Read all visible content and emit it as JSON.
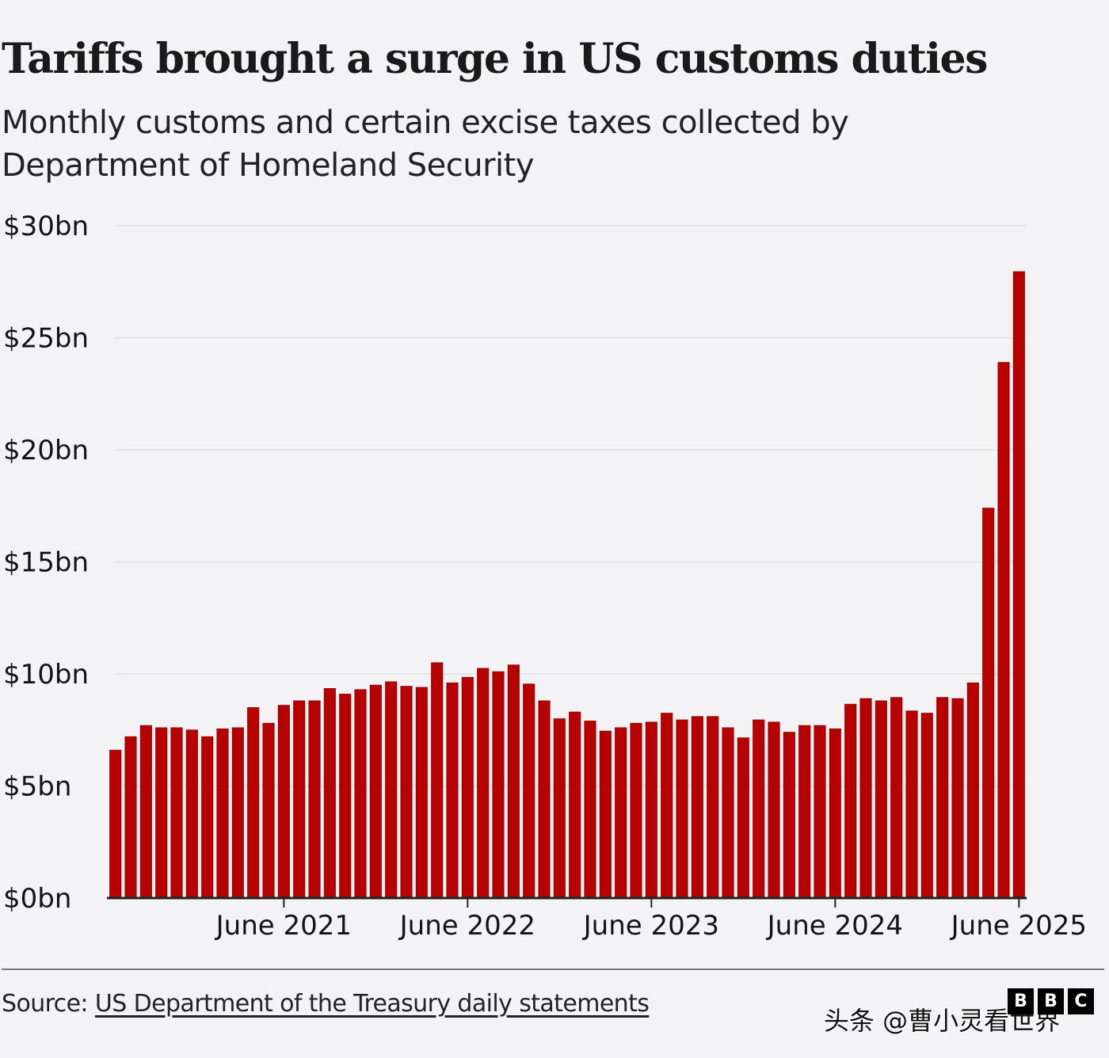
{
  "header": {
    "title": "Tariffs brought a surge in US customs duties",
    "subtitle": "Monthly customs and certain excise taxes collected by Department of Homeland Security"
  },
  "chart_data": {
    "type": "bar",
    "title": "Tariffs brought a surge in US customs duties",
    "subtitle": "Monthly customs and certain excise taxes collected by Department of Homeland Security",
    "xlabel": "",
    "ylabel": "",
    "ylim": [
      0,
      30
    ],
    "y_ticks": [
      0,
      5,
      10,
      15,
      20,
      25,
      30
    ],
    "y_tick_labels": [
      "$0bn",
      "$5bn",
      "$10bn",
      "$15bn",
      "$20bn",
      "$25bn",
      "$30bn"
    ],
    "grid": true,
    "bar_color": "#b80000",
    "categories": [
      "Jul 2020",
      "Aug 2020",
      "Sep 2020",
      "Oct 2020",
      "Nov 2020",
      "Dec 2020",
      "Jan 2021",
      "Feb 2021",
      "Mar 2021",
      "Apr 2021",
      "May 2021",
      "Jun 2021",
      "Jul 2021",
      "Aug 2021",
      "Sep 2021",
      "Oct 2021",
      "Nov 2021",
      "Dec 2021",
      "Jan 2022",
      "Feb 2022",
      "Mar 2022",
      "Apr 2022",
      "May 2022",
      "Jun 2022",
      "Jul 2022",
      "Aug 2022",
      "Sep 2022",
      "Oct 2022",
      "Nov 2022",
      "Dec 2022",
      "Jan 2023",
      "Feb 2023",
      "Mar 2023",
      "Apr 2023",
      "May 2023",
      "Jun 2023",
      "Jul 2023",
      "Aug 2023",
      "Sep 2023",
      "Oct 2023",
      "Nov 2023",
      "Dec 2023",
      "Jan 2024",
      "Feb 2024",
      "Mar 2024",
      "Apr 2024",
      "May 2024",
      "Jun 2024",
      "Jul 2024",
      "Aug 2024",
      "Sep 2024",
      "Oct 2024",
      "Nov 2024",
      "Dec 2024",
      "Jan 2025",
      "Feb 2025",
      "Mar 2025",
      "Apr 2025",
      "May 2025",
      "Jun 2025"
    ],
    "values": [
      6.6,
      7.2,
      7.7,
      7.6,
      7.6,
      7.5,
      7.2,
      7.55,
      7.6,
      8.5,
      7.8,
      8.6,
      8.8,
      8.8,
      9.35,
      9.1,
      9.3,
      9.5,
      9.65,
      9.45,
      9.4,
      10.5,
      9.6,
      9.85,
      10.25,
      10.1,
      10.4,
      9.55,
      8.8,
      8.0,
      8.3,
      7.9,
      7.45,
      7.6,
      7.8,
      7.85,
      8.25,
      7.95,
      8.1,
      8.1,
      7.6,
      7.15,
      7.95,
      7.85,
      7.4,
      7.7,
      7.7,
      7.55,
      8.65,
      8.9,
      8.8,
      8.95,
      8.35,
      8.25,
      8.95,
      8.9,
      9.6,
      17.4,
      23.9,
      27.95
    ],
    "x_ticks": [
      {
        "category": "Jun 2021",
        "label": "June 2021"
      },
      {
        "category": "Jun 2022",
        "label": "June 2022"
      },
      {
        "category": "Jun 2023",
        "label": "June 2023"
      },
      {
        "category": "Jun 2024",
        "label": "June 2024"
      },
      {
        "category": "Jun 2025",
        "label": "June 2025"
      }
    ],
    "unit": "$bn"
  },
  "footer": {
    "source_prefix": "Source: ",
    "source_link": "US Department of the Treasury daily statements",
    "logo_letters": [
      "B",
      "B",
      "C"
    ],
    "watermark": "头条 @曹小灵看世界"
  }
}
